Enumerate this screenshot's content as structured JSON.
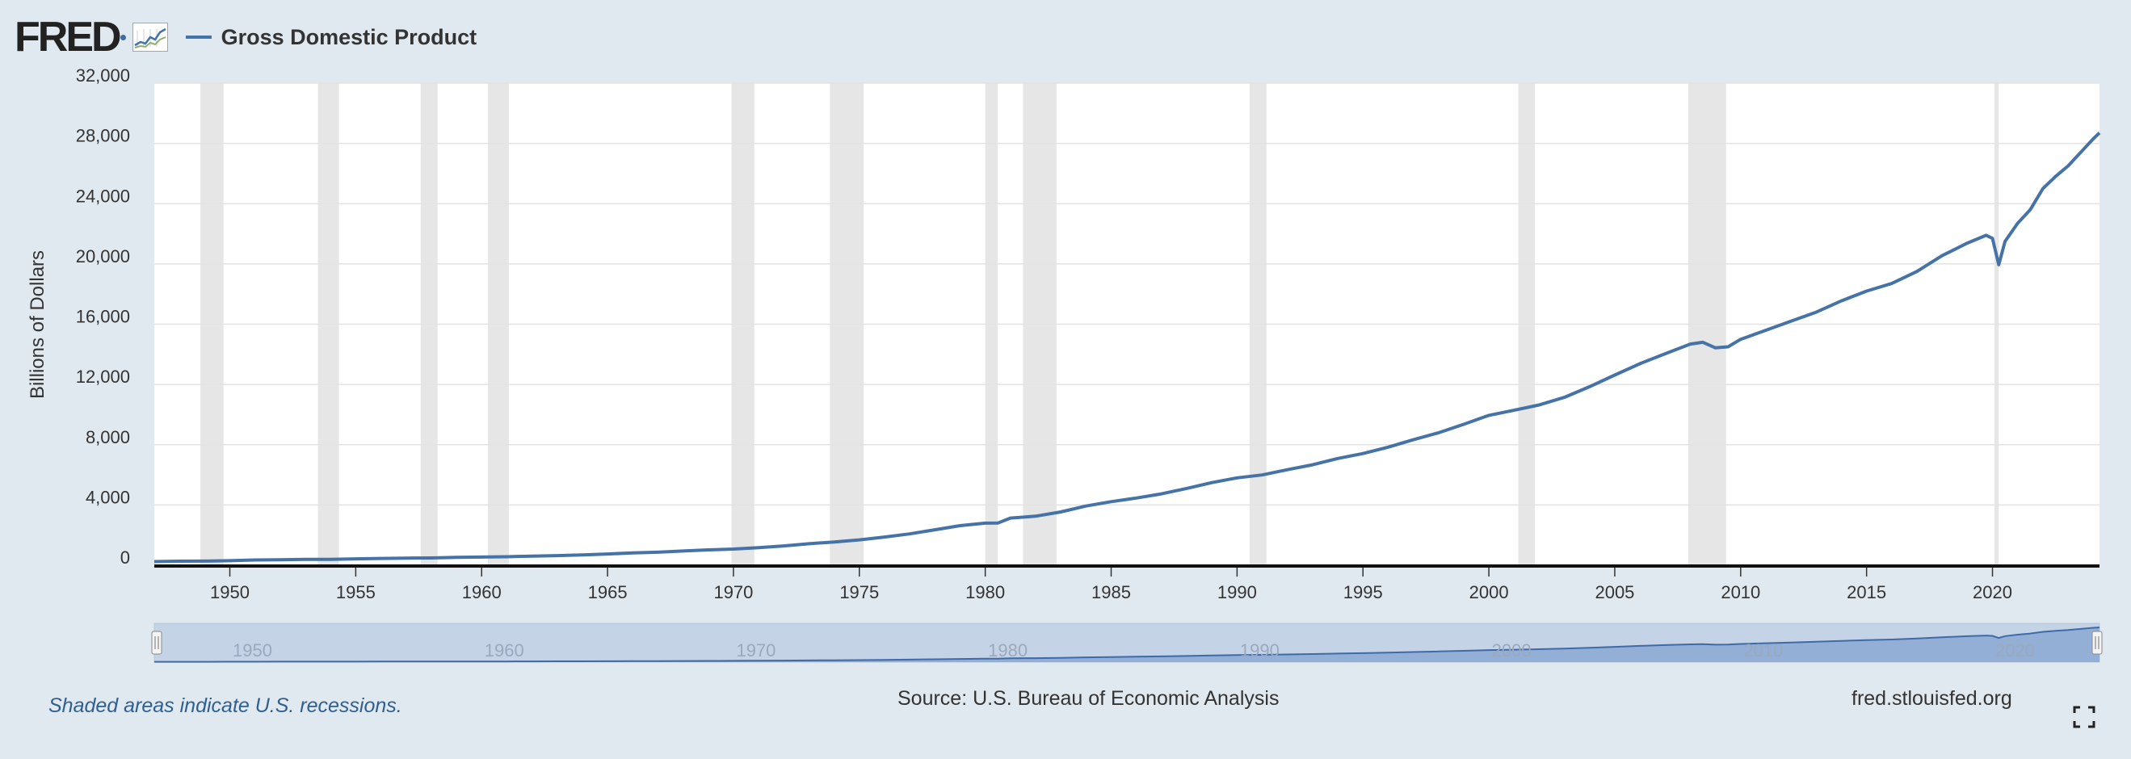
{
  "header": {
    "logo_text": "FRED",
    "logo_icon": "chart-line-icon",
    "series_label": "Gross Domestic Product"
  },
  "colors": {
    "series": "#4572a7",
    "recession": "#e6e6e6",
    "background": "#e1e9f0",
    "navigator_fill": "#c5d3e6"
  },
  "chart_data": {
    "type": "line",
    "title": "",
    "xlabel": "",
    "ylabel": "Billions of Dollars",
    "ylim": [
      0,
      32000
    ],
    "xlim": [
      1947.0,
      2024.25
    ],
    "yticks": [
      0,
      4000,
      8000,
      12000,
      16000,
      20000,
      24000,
      28000,
      32000
    ],
    "ytick_labels": [
      "0",
      "4,000",
      "8,000",
      "12,000",
      "16,000",
      "20,000",
      "24,000",
      "28,000",
      "32,000"
    ],
    "xticks": [
      1950,
      1955,
      1960,
      1965,
      1970,
      1975,
      1980,
      1985,
      1990,
      1995,
      2000,
      2005,
      2010,
      2015,
      2020
    ],
    "grid": true,
    "legend": "top-left",
    "recessions": [
      [
        1948.83,
        1949.75
      ],
      [
        1953.5,
        1954.33
      ],
      [
        1957.58,
        1958.25
      ],
      [
        1960.25,
        1961.08
      ],
      [
        1969.92,
        1970.83
      ],
      [
        1973.83,
        1975.17
      ],
      [
        1980.0,
        1980.5
      ],
      [
        1981.5,
        1982.83
      ],
      [
        1990.5,
        1991.17
      ],
      [
        2001.17,
        2001.83
      ],
      [
        2007.92,
        2009.42
      ],
      [
        2020.08,
        2020.25
      ]
    ],
    "series": [
      {
        "name": "Gross Domestic Product",
        "x": [
          1947.0,
          1948.0,
          1949.0,
          1950.0,
          1951.0,
          1952.0,
          1953.0,
          1954.0,
          1955.0,
          1956.0,
          1957.0,
          1958.0,
          1959.0,
          1960.0,
          1961.0,
          1962.0,
          1963.0,
          1964.0,
          1965.0,
          1966.0,
          1967.0,
          1968.0,
          1969.0,
          1970.0,
          1971.0,
          1972.0,
          1973.0,
          1974.0,
          1975.0,
          1976.0,
          1977.0,
          1978.0,
          1979.0,
          1980.0,
          1980.5,
          1981.0,
          1982.0,
          1983.0,
          1984.0,
          1985.0,
          1986.0,
          1987.0,
          1988.0,
          1989.0,
          1990.0,
          1991.0,
          1992.0,
          1993.0,
          1994.0,
          1995.0,
          1996.0,
          1997.0,
          1998.0,
          1999.0,
          2000.0,
          2001.0,
          2002.0,
          2003.0,
          2004.0,
          2005.0,
          2006.0,
          2007.0,
          2008.0,
          2008.5,
          2009.0,
          2009.5,
          2010.0,
          2011.0,
          2012.0,
          2013.0,
          2014.0,
          2015.0,
          2016.0,
          2017.0,
          2018.0,
          2019.0,
          2019.75,
          2020.0,
          2020.25,
          2020.5,
          2021.0,
          2021.5,
          2022.0,
          2022.5,
          2023.0,
          2023.5,
          2024.0,
          2024.25
        ],
        "y": [
          243,
          269,
          272,
          300,
          347,
          367,
          389,
          391,
          425,
          449,
          474,
          482,
          522,
          543,
          563,
          605,
          638,
          686,
          743,
          815,
          861,
          943,
          1019,
          1073,
          1165,
          1280,
          1425,
          1545,
          1684,
          1873,
          2082,
          2352,
          2627,
          2790,
          2800,
          3128,
          3255,
          3536,
          3931,
          4217,
          4460,
          4736,
          5100,
          5482,
          5800,
          5992,
          6342,
          6667,
          7085,
          7415,
          7839,
          8332,
          8793,
          9353,
          9951,
          10286,
          10642,
          11142,
          11853,
          12623,
          13377,
          14037,
          14681,
          14800,
          14430,
          14500,
          15000,
          15600,
          16200,
          16800,
          17550,
          18200,
          18700,
          19500,
          20550,
          21380,
          21900,
          21700,
          19950,
          21500,
          22700,
          23600,
          25000,
          25800,
          26500,
          27400,
          28300,
          28700
        ]
      }
    ],
    "navigator": {
      "tick_labels": [
        "1950",
        "1960",
        "1970",
        "1980",
        "1990",
        "2000",
        "2010",
        "2020"
      ]
    }
  },
  "footer": {
    "note": "Shaded areas indicate U.S. recessions.",
    "source": "Source: U.S. Bureau of Economic Analysis",
    "site": "fred.stlouisfed.org",
    "fullscreen_icon": "fullscreen-icon"
  }
}
